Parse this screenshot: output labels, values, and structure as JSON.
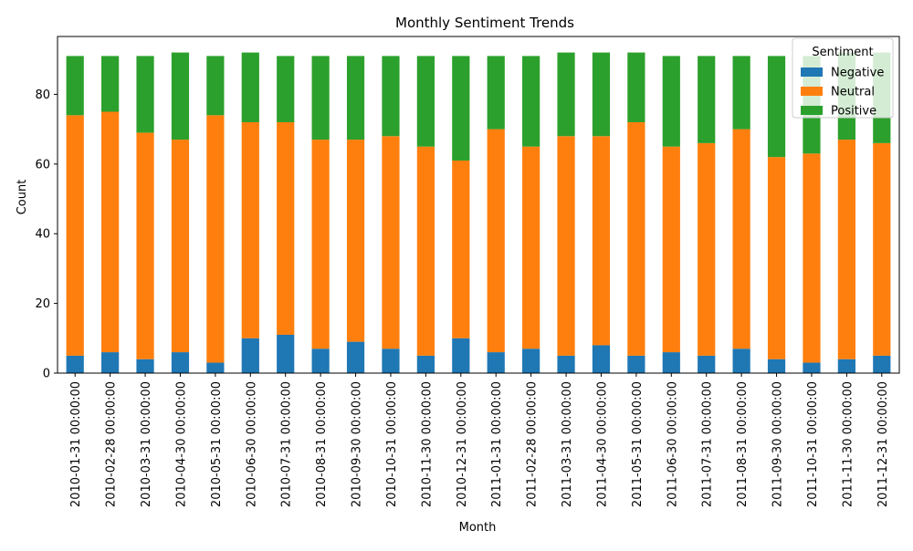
{
  "chart_data": {
    "type": "bar",
    "stacked": true,
    "title": "Monthly Sentiment Trends",
    "xlabel": "Month",
    "ylabel": "Count",
    "ylim": [
      0,
      96.6
    ],
    "yticks": [
      0,
      20,
      40,
      60,
      80
    ],
    "grid": false,
    "legend": {
      "title": "Sentiment",
      "placement": "top-right"
    },
    "categories": [
      "2010-01-31 00:00:00",
      "2010-02-28 00:00:00",
      "2010-03-31 00:00:00",
      "2010-04-30 00:00:00",
      "2010-05-31 00:00:00",
      "2010-06-30 00:00:00",
      "2010-07-31 00:00:00",
      "2010-08-31 00:00:00",
      "2010-09-30 00:00:00",
      "2010-10-31 00:00:00",
      "2010-11-30 00:00:00",
      "2010-12-31 00:00:00",
      "2011-01-31 00:00:00",
      "2011-02-28 00:00:00",
      "2011-03-31 00:00:00",
      "2011-04-30 00:00:00",
      "2011-05-31 00:00:00",
      "2011-06-30 00:00:00",
      "2011-07-31 00:00:00",
      "2011-08-31 00:00:00",
      "2011-09-30 00:00:00",
      "2011-10-31 00:00:00",
      "2011-11-30 00:00:00",
      "2011-12-31 00:00:00"
    ],
    "series": [
      {
        "name": "Negative",
        "color": "#1f77b4",
        "values": [
          5,
          6,
          4,
          6,
          3,
          10,
          11,
          7,
          9,
          7,
          5,
          10,
          6,
          7,
          5,
          8,
          5,
          6,
          5,
          7,
          4,
          3,
          4,
          5
        ]
      },
      {
        "name": "Neutral",
        "color": "#ff7f0e",
        "values": [
          69,
          69,
          65,
          61,
          71,
          62,
          61,
          60,
          58,
          61,
          60,
          51,
          64,
          58,
          63,
          60,
          67,
          59,
          61,
          63,
          58,
          60,
          63,
          61
        ]
      },
      {
        "name": "Positive",
        "color": "#2ca02c",
        "values": [
          17,
          16,
          22,
          25,
          17,
          20,
          19,
          24,
          24,
          23,
          26,
          30,
          21,
          26,
          24,
          24,
          20,
          26,
          25,
          21,
          29,
          28,
          25,
          26
        ]
      }
    ]
  }
}
